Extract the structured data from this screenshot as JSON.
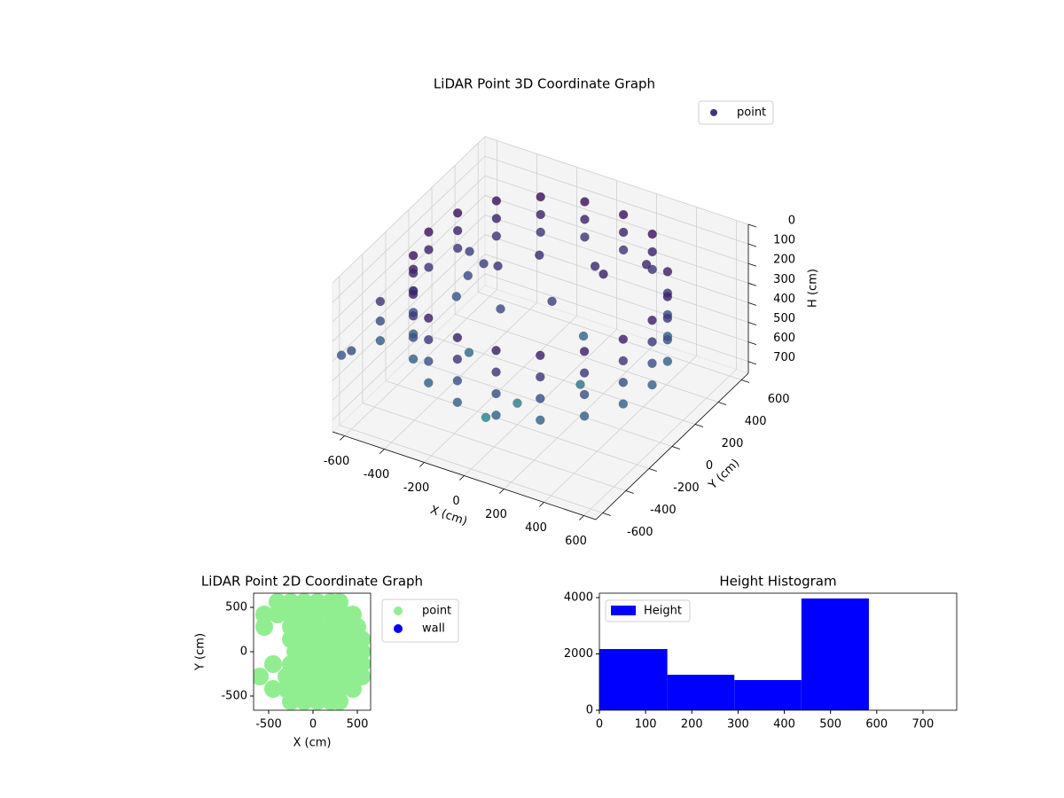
{
  "chart_data": [
    {
      "type": "scatter3d",
      "title": "LiDAR Point 3D Coordinate Graph",
      "xlabel": "X (cm)",
      "ylabel": "Y (cm)",
      "zlabel": "H (cm)",
      "xlim": [
        -660,
        660
      ],
      "ylim": [
        -660,
        660
      ],
      "zlim": [
        0,
        760
      ],
      "zinverted": true,
      "xticks": [
        -600,
        -400,
        -200,
        0,
        200,
        400,
        600
      ],
      "yticks": [
        -600,
        -400,
        -200,
        0,
        200,
        400,
        600
      ],
      "zticks": [
        0,
        100,
        200,
        300,
        400,
        500,
        600,
        700
      ],
      "colormap": "viridis",
      "legend": "upper right",
      "grid": true,
      "series": [
        {
          "name": "point",
          "color": "#46327e",
          "x": [
            -526,
            -526,
            -526,
            -526,
            -429,
            -429,
            -429,
            -429,
            -280,
            -280,
            -280,
            -280,
            -97,
            -97,
            -97,
            -97,
            97,
            97,
            97,
            97,
            280,
            280,
            280,
            280,
            429,
            429,
            429,
            429,
            526,
            526,
            526,
            526,
            560,
            560,
            560,
            560,
            526,
            526,
            526,
            526,
            429,
            429,
            429,
            429,
            280,
            280,
            280,
            97,
            97,
            97,
            -97,
            -97,
            -97,
            -280,
            -280,
            -280,
            -429,
            -429,
            -429,
            -526,
            -526,
            -526,
            -560,
            -560,
            -560,
            -526,
            -526,
            -526,
            -600,
            -600,
            -600,
            100,
            -150,
            -300,
            200,
            0,
            -200,
            300,
            -400,
            -450,
            -500,
            -450,
            -300,
            200,
            -100,
            100,
            0,
            -650,
            -600
          ],
          "y": [
            -192,
            -192,
            -192,
            -192,
            -360,
            -360,
            -360,
            -360,
            -485,
            -485,
            -485,
            -485,
            -551,
            -551,
            -551,
            -551,
            -551,
            -551,
            -551,
            -551,
            -485,
            -485,
            -485,
            -485,
            -360,
            -360,
            -360,
            -360,
            -192,
            -192,
            -192,
            -192,
            0,
            0,
            0,
            0,
            192,
            192,
            192,
            192,
            360,
            360,
            360,
            360,
            485,
            485,
            485,
            551,
            551,
            551,
            551,
            551,
            551,
            485,
            485,
            485,
            360,
            360,
            360,
            192,
            192,
            192,
            0,
            0,
            0,
            -192,
            -192,
            -192,
            -350,
            -350,
            -350,
            300,
            250,
            150,
            200,
            100,
            0,
            400,
            200,
            150,
            250,
            50,
            -100,
            0,
            -300,
            200,
            -200,
            -600,
            -600
          ],
          "z": [
            150,
            260,
            370,
            480,
            150,
            260,
            370,
            480,
            150,
            260,
            370,
            480,
            150,
            260,
            370,
            480,
            150,
            260,
            370,
            480,
            150,
            260,
            370,
            480,
            150,
            260,
            370,
            480,
            150,
            260,
            370,
            480,
            150,
            260,
            370,
            480,
            150,
            260,
            370,
            480,
            150,
            260,
            370,
            480,
            80,
            170,
            260,
            80,
            170,
            260,
            80,
            170,
            260,
            80,
            170,
            260,
            80,
            170,
            260,
            80,
            170,
            260,
            80,
            170,
            260,
            80,
            170,
            260,
            250,
            350,
            450,
            200,
            200,
            250,
            150,
            300,
            350,
            180,
            300,
            350,
            300,
            400,
            550,
            600,
            700,
            500,
            650,
            400,
            360
          ]
        }
      ]
    },
    {
      "type": "scatter",
      "title": "LiDAR Point 2D Coordinate Graph",
      "xlabel": "X (cm)",
      "ylabel": "Y (cm)",
      "xlim": [
        -670,
        650
      ],
      "ylim": [
        -660,
        660
      ],
      "xticks": [
        -500,
        0,
        500
      ],
      "yticks": [
        -500,
        0,
        500
      ],
      "legend": "outside right",
      "series": [
        {
          "name": "point",
          "color": "#90ee90",
          "x": [
            -400,
            -250,
            -100,
            50,
            200,
            300,
            -550,
            -400,
            -250,
            -100,
            50,
            200,
            350,
            450,
            -550,
            -250,
            -100,
            50,
            200,
            350,
            500,
            -250,
            -100,
            50,
            200,
            350,
            500,
            550,
            -200,
            -50,
            100,
            250,
            400,
            550,
            -450,
            -250,
            -100,
            50,
            200,
            350,
            500,
            550,
            -600,
            -300,
            -150,
            0,
            150,
            300,
            450,
            550,
            -450,
            -300,
            -150,
            0,
            150,
            300,
            450,
            -250,
            -100,
            50,
            200,
            300
          ],
          "y": [
            560,
            560,
            560,
            560,
            560,
            560,
            420,
            420,
            420,
            420,
            420,
            420,
            420,
            420,
            280,
            280,
            280,
            280,
            280,
            280,
            280,
            140,
            140,
            140,
            140,
            140,
            140,
            140,
            0,
            0,
            0,
            0,
            0,
            0,
            -140,
            -140,
            -140,
            -140,
            -140,
            -140,
            -140,
            -140,
            -280,
            -280,
            -280,
            -280,
            -280,
            -280,
            -280,
            -280,
            -420,
            -420,
            -420,
            -420,
            -420,
            -420,
            -420,
            -560,
            -560,
            -560,
            -560,
            -560
          ]
        },
        {
          "name": "wall",
          "color": "#0000ff",
          "x": [],
          "y": []
        }
      ]
    },
    {
      "type": "histogram",
      "title": "Height Histogram",
      "xlim": [
        0,
        773
      ],
      "ylim": [
        0,
        4157
      ],
      "xticks": [
        0,
        100,
        200,
        300,
        400,
        500,
        600,
        700
      ],
      "yticks": [
        0,
        2000,
        4000
      ],
      "legend": "upper left",
      "bins": [
        0,
        147,
        292,
        437,
        583
      ],
      "series": [
        {
          "name": "Height",
          "color": "#0000ff",
          "values": [
            2173,
            1260,
            1071,
            3969
          ]
        }
      ]
    }
  ]
}
